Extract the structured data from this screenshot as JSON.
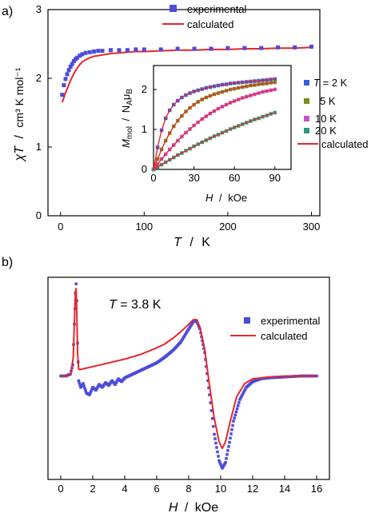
{
  "figure": {
    "panel_a": "a)",
    "panel_b": "b)"
  },
  "colors": {
    "experimental": "#4b4bdc",
    "calculated": "#e8262a"
  },
  "chart_data": [
    {
      "id": "a-main",
      "type": "scatter",
      "xlim": [
        -15,
        310
      ],
      "ylim": [
        0,
        3
      ],
      "xticks": [
        "0",
        "100",
        "200",
        "300"
      ],
      "xtick_values": [
        0,
        100,
        200,
        300
      ],
      "yticks": [
        "0",
        "1",
        "2",
        "3"
      ],
      "ytick_values": [
        0,
        1,
        2,
        3
      ],
      "xlabel": {
        "var": "T",
        "sep": "/",
        "unit": "K"
      },
      "ylabel": {
        "var": "χT",
        "sep": "/",
        "unit": "cm³ K mol⁻¹"
      },
      "legend": [
        {
          "name": "experimental",
          "marker": "square"
        },
        {
          "name": "calculated",
          "marker": "line"
        }
      ],
      "series": [
        {
          "name": "experimental",
          "color": "#4b4bdc",
          "x": [
            2,
            4,
            6,
            8,
            10,
            12,
            14,
            16,
            18,
            20,
            23,
            26,
            30,
            35,
            40,
            45,
            50,
            60,
            70,
            80,
            90,
            100,
            120,
            140,
            160,
            180,
            200,
            220,
            240,
            260,
            280,
            300
          ],
          "y": [
            1.76,
            1.9,
            1.99,
            2.06,
            2.12,
            2.17,
            2.21,
            2.25,
            2.28,
            2.3,
            2.33,
            2.35,
            2.37,
            2.38,
            2.39,
            2.4,
            2.4,
            2.41,
            2.41,
            2.41,
            2.42,
            2.42,
            2.42,
            2.43,
            2.43,
            2.43,
            2.44,
            2.44,
            2.44,
            2.45,
            2.45,
            2.46
          ]
        },
        {
          "name": "calculated",
          "color": "#e8262a",
          "x": [
            2,
            4,
            6,
            8,
            10,
            12,
            14,
            16,
            18,
            20,
            23,
            26,
            30,
            35,
            40,
            45,
            50,
            60,
            70,
            80,
            90,
            100,
            120,
            140,
            160,
            180,
            200,
            220,
            240,
            260,
            280,
            300
          ],
          "y": [
            1.65,
            1.72,
            1.79,
            1.85,
            1.91,
            1.97,
            2.02,
            2.07,
            2.11,
            2.15,
            2.2,
            2.24,
            2.27,
            2.3,
            2.32,
            2.33,
            2.34,
            2.36,
            2.37,
            2.38,
            2.39,
            2.39,
            2.4,
            2.41,
            2.41,
            2.42,
            2.42,
            2.43,
            2.43,
            2.44,
            2.44,
            2.45
          ]
        }
      ]
    },
    {
      "id": "a-inset",
      "type": "scatter",
      "xlim": [
        0,
        102
      ],
      "ylim": [
        0,
        2.6
      ],
      "xticks": [
        "0",
        "30",
        "60",
        "90"
      ],
      "xtick_values": [
        0,
        30,
        60,
        90
      ],
      "yticks": [
        "0",
        "1",
        "2"
      ],
      "ytick_values": [
        0,
        1,
        2
      ],
      "xlabel": {
        "var": "H",
        "sep": "/",
        "unit": "kOe"
      },
      "ylabel": {
        "var": "M",
        "sub": "mol",
        "sep": "/",
        "na": "N",
        "na_sub": "A",
        "mu": "μ",
        "mu_sub": "B"
      },
      "legend_title": {
        "var": "T",
        "value": "= 2 K"
      },
      "legend": [
        {
          "name": "T = 2 K",
          "label": "= 2 K",
          "color": "#3a5bd9"
        },
        {
          "name": "5 K",
          "label": "5 K",
          "color": "#7a8c1e"
        },
        {
          "name": "10 K",
          "label": "10 K",
          "color": "#c552c8"
        },
        {
          "name": "20 K",
          "label": "20 K",
          "color": "#2f9a7a"
        },
        {
          "name": "calculated",
          "label": "calculated",
          "color": "#e8262a"
        }
      ],
      "x": [
        0,
        3,
        6,
        9,
        12,
        15,
        18,
        21,
        24,
        27,
        30,
        33,
        36,
        39,
        42,
        45,
        48,
        51,
        54,
        57,
        60,
        63,
        66,
        69,
        72,
        75,
        78,
        81,
        84,
        87,
        90
      ],
      "series": [
        {
          "name": "2 K",
          "color": "#3a5bd9",
          "y": [
            0,
            0.55,
            0.98,
            1.28,
            1.48,
            1.62,
            1.72,
            1.8,
            1.86,
            1.91,
            1.95,
            1.98,
            2.01,
            2.04,
            2.06,
            2.08,
            2.1,
            2.12,
            2.13,
            2.15,
            2.16,
            2.17,
            2.18,
            2.19,
            2.2,
            2.21,
            2.22,
            2.23,
            2.24,
            2.25,
            2.26
          ]
        },
        {
          "name": "5 K",
          "color": "#7a8c1e",
          "y": [
            0,
            0.26,
            0.5,
            0.72,
            0.91,
            1.08,
            1.22,
            1.34,
            1.45,
            1.54,
            1.62,
            1.69,
            1.75,
            1.8,
            1.84,
            1.88,
            1.91,
            1.94,
            1.97,
            2.0,
            2.02,
            2.04,
            2.06,
            2.08,
            2.1,
            2.11,
            2.13,
            2.14,
            2.15,
            2.17,
            2.18
          ]
        },
        {
          "name": "10 K",
          "color": "#c552c8",
          "y": [
            0,
            0.13,
            0.26,
            0.38,
            0.5,
            0.61,
            0.72,
            0.82,
            0.92,
            1.01,
            1.1,
            1.18,
            1.26,
            1.33,
            1.4,
            1.46,
            1.52,
            1.57,
            1.62,
            1.67,
            1.71,
            1.75,
            1.79,
            1.82,
            1.85,
            1.88,
            1.91,
            1.94,
            1.96,
            1.98,
            2.0
          ]
        },
        {
          "name": "20 K",
          "color": "#2f9a7a",
          "y": [
            0,
            0.06,
            0.12,
            0.18,
            0.24,
            0.3,
            0.36,
            0.41,
            0.47,
            0.52,
            0.58,
            0.63,
            0.68,
            0.73,
            0.78,
            0.83,
            0.87,
            0.92,
            0.96,
            1.01,
            1.05,
            1.09,
            1.13,
            1.17,
            1.21,
            1.25,
            1.28,
            1.32,
            1.35,
            1.39,
            1.42
          ]
        }
      ]
    },
    {
      "id": "b-epr",
      "type": "line",
      "xlim": [
        -0.8,
        16.8
      ],
      "ylim": [
        -1.1,
        1.05
      ],
      "xticks": [
        "0",
        "2",
        "4",
        "6",
        "8",
        "10",
        "12",
        "14",
        "16"
      ],
      "xtick_values": [
        0,
        2,
        4,
        6,
        8,
        10,
        12,
        14,
        16
      ],
      "xlabel": {
        "var": "H",
        "sep": "/",
        "unit": "kOe"
      },
      "annotation": {
        "var": "T",
        "value": "= 3.8 K"
      },
      "legend": [
        {
          "name": "experimental",
          "marker": "square"
        },
        {
          "name": "calculated",
          "marker": "line"
        }
      ],
      "series": [
        {
          "name": "experimental",
          "color": "#4b4bdc",
          "x": [
            0,
            0.3,
            0.6,
            0.75,
            0.85,
            0.92,
            0.96,
            1.0,
            1.05,
            1.12,
            1.25,
            1.4,
            1.6,
            1.8,
            2.0,
            2.2,
            2.4,
            2.6,
            2.8,
            3.0,
            3.2,
            3.4,
            3.6,
            3.8,
            4.0,
            4.5,
            5.0,
            5.5,
            6.0,
            6.5,
            7.0,
            7.5,
            8.0,
            8.3,
            8.5,
            8.7,
            9.0,
            9.3,
            9.6,
            9.9,
            10.1,
            10.3,
            10.5,
            10.8,
            11.2,
            11.6,
            12.0,
            12.5,
            13,
            14,
            15,
            16
          ],
          "y": [
            0,
            0,
            0.02,
            0.12,
            0.55,
            0.88,
            0.98,
            0.8,
            0.35,
            -0.05,
            -0.12,
            -0.08,
            -0.18,
            -0.2,
            -0.12,
            -0.15,
            -0.09,
            -0.12,
            -0.07,
            -0.1,
            -0.05,
            -0.09,
            -0.03,
            -0.06,
            -0.02,
            0.02,
            0.06,
            0.1,
            0.14,
            0.2,
            0.27,
            0.36,
            0.5,
            0.58,
            0.58,
            0.5,
            0.25,
            -0.2,
            -0.62,
            -0.9,
            -0.98,
            -0.92,
            -0.75,
            -0.48,
            -0.25,
            -0.12,
            -0.06,
            -0.03,
            -0.02,
            -0.01,
            0,
            0
          ]
        },
        {
          "name": "calculated",
          "color": "#e8262a",
          "x": [
            0,
            0.4,
            0.65,
            0.78,
            0.86,
            0.92,
            0.96,
            1.0,
            1.05,
            1.12,
            1.25,
            1.5,
            2,
            3,
            4,
            5,
            6,
            6.5,
            7,
            7.5,
            8,
            8.3,
            8.5,
            8.7,
            9.0,
            9.3,
            9.6,
            9.9,
            10.1,
            10.3,
            10.6,
            11,
            11.5,
            12,
            13,
            14,
            15,
            16
          ],
          "y": [
            0,
            0,
            0.03,
            0.2,
            0.62,
            0.9,
            0.93,
            0.7,
            0.25,
            0.07,
            0.07,
            0.08,
            0.1,
            0.14,
            0.18,
            0.23,
            0.3,
            0.34,
            0.4,
            0.47,
            0.55,
            0.6,
            0.6,
            0.52,
            0.28,
            -0.1,
            -0.45,
            -0.7,
            -0.77,
            -0.7,
            -0.48,
            -0.22,
            -0.08,
            -0.03,
            -0.01,
            0,
            0,
            0
          ]
        }
      ]
    }
  ]
}
